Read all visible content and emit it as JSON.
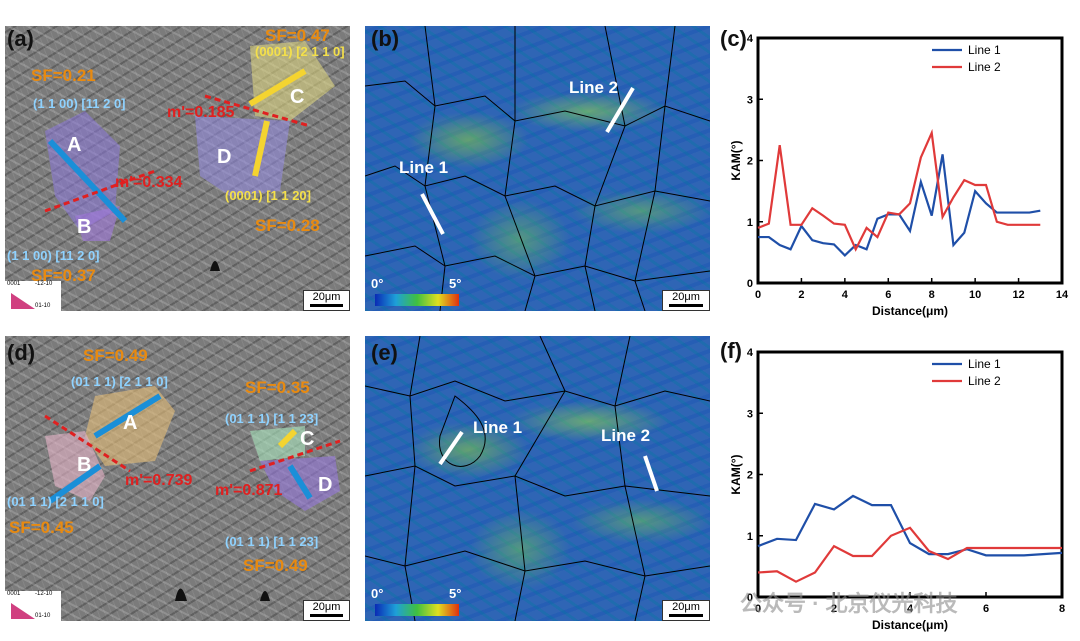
{
  "panels": {
    "a": {
      "letter": "(a)",
      "sf_labels": [
        "SF=0.21",
        "SF=0.47",
        "SF=0.28",
        "SF=0.37"
      ],
      "plane_labels": [
        "(1 1 00) [11 2 0]",
        "(0001) [2 1 1 0]",
        "(0001) [1 1 20]",
        "(1 1 00) [11 2 0]"
      ],
      "m_labels": [
        "m'=0.185",
        "m'=0.334"
      ],
      "grain_labels": [
        "A",
        "B",
        "C",
        "D"
      ],
      "legend_text": [
        "0001",
        "-12-10",
        "01-10"
      ],
      "scale": "20μm"
    },
    "b": {
      "letter": "(b)",
      "line_labels": [
        "Line 1",
        "Line 2"
      ],
      "cbar_min": "0°",
      "cbar_max": "5°",
      "scale": "20μm"
    },
    "d": {
      "letter": "(d)",
      "sf_labels": [
        "SF=0.49",
        "SF=0.35",
        "SF=0.45",
        "SF=0.49"
      ],
      "plane_labels": [
        "(01 1 1) [2 1 1 0]",
        "(01 1 1) [1 1 23]",
        "(01 1 1) [2 1 1 0]",
        "(01 1 1) [1 1 23]"
      ],
      "m_labels": [
        "m'=0.739",
        "m'=0.871"
      ],
      "grain_labels": [
        "A",
        "B",
        "C",
        "D"
      ],
      "legend_text": [
        "0001",
        "-12-10",
        "01-10"
      ],
      "scale": "20μm"
    },
    "e": {
      "letter": "(e)",
      "line_labels": [
        "Line 1",
        "Line 2"
      ],
      "cbar_min": "0°",
      "cbar_max": "5°",
      "scale": "20μm"
    }
  },
  "chart_data": [
    {
      "type": "line",
      "panel_label": "(c)",
      "xlabel": "Distance(μm)",
      "ylabel": "KAM(°)",
      "xlim": [
        0,
        14
      ],
      "ylim": [
        0,
        4
      ],
      "xticks": [
        0,
        2,
        4,
        6,
        8,
        10,
        12,
        14
      ],
      "yticks": [
        0,
        1,
        2,
        3,
        4
      ],
      "legend_position": "top-right",
      "series": [
        {
          "name": "Line 1",
          "color": "#1f4fa8",
          "x": [
            0,
            0.5,
            1,
            1.5,
            2,
            2.5,
            3,
            3.5,
            4,
            4.5,
            5,
            5.5,
            6,
            6.5,
            7,
            7.5,
            8,
            8.5,
            9,
            9.5,
            10,
            10.5,
            11,
            11.5,
            12,
            12.5,
            13
          ],
          "y": [
            0.75,
            0.75,
            0.62,
            0.55,
            0.93,
            0.7,
            0.65,
            0.63,
            0.45,
            0.62,
            0.55,
            1.05,
            1.12,
            1.12,
            0.85,
            1.65,
            1.1,
            2.1,
            0.62,
            0.82,
            1.5,
            1.3,
            1.15,
            1.15,
            1.15,
            1.15,
            1.18
          ]
        },
        {
          "name": "Line 2",
          "color": "#e03a3a",
          "x": [
            0,
            0.5,
            1,
            1.5,
            2,
            2.5,
            3,
            3.5,
            4,
            4.5,
            5,
            5.5,
            6,
            6.5,
            7,
            7.5,
            8,
            8.5,
            9,
            9.5,
            10,
            10.5,
            11,
            11.5,
            12,
            12.5,
            13
          ],
          "y": [
            0.9,
            0.97,
            2.25,
            0.95,
            0.95,
            1.22,
            1.1,
            0.97,
            0.95,
            0.55,
            0.9,
            0.75,
            1.15,
            1.12,
            1.3,
            2.05,
            2.45,
            1.08,
            1.4,
            1.68,
            1.6,
            1.6,
            1.0,
            0.95,
            0.95,
            0.95,
            0.95
          ]
        }
      ]
    },
    {
      "type": "line",
      "panel_label": "(f)",
      "xlabel": "Distance(μm)",
      "ylabel": "KAM(°)",
      "xlim": [
        0,
        8
      ],
      "ylim": [
        0,
        4
      ],
      "xticks": [
        0,
        2,
        4,
        6,
        8
      ],
      "yticks": [
        0,
        1,
        2,
        3,
        4
      ],
      "legend_position": "top-right",
      "series": [
        {
          "name": "Line 1",
          "color": "#1f4fa8",
          "x": [
            0,
            0.5,
            1,
            1.5,
            2,
            2.5,
            3,
            3.5,
            4,
            4.5,
            5,
            5.5,
            6,
            6.5,
            7,
            7.5,
            8
          ],
          "y": [
            0.83,
            0.95,
            0.93,
            1.52,
            1.43,
            1.65,
            1.5,
            1.5,
            0.88,
            0.7,
            0.7,
            0.78,
            0.68,
            0.68,
            0.68,
            0.7,
            0.72
          ]
        },
        {
          "name": "Line 2",
          "color": "#e03a3a",
          "x": [
            0,
            0.5,
            1,
            1.5,
            2,
            2.5,
            3,
            3.5,
            4,
            4.5,
            5,
            5.5,
            6,
            6.5,
            7,
            7.5,
            8
          ],
          "y": [
            0.4,
            0.42,
            0.25,
            0.4,
            0.83,
            0.67,
            0.67,
            1.0,
            1.13,
            0.75,
            0.62,
            0.8,
            0.8,
            0.8,
            0.8,
            0.8,
            0.8
          ]
        }
      ]
    }
  ],
  "watermark": "公众号 · 北京仪光科技"
}
